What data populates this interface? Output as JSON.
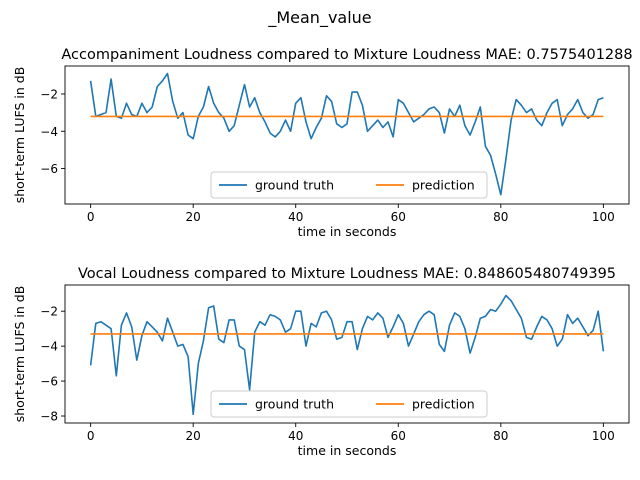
{
  "suptitle": "_Mean_value",
  "chart_data": [
    {
      "type": "line",
      "title": "Accompaniment Loudness compared to Mixture Loudness  MAE: 0.7575401288",
      "xlabel": "time in seconds",
      "ylabel": "short-term LUFS in dB",
      "xlim": [
        -5,
        105
      ],
      "ylim": [
        -7.9,
        -0.5
      ],
      "xticks": [
        0,
        20,
        40,
        60,
        80,
        100
      ],
      "yticks": [
        -6,
        -4,
        -2
      ],
      "xtick_labels": [
        "0",
        "20",
        "40",
        "60",
        "80",
        "100"
      ],
      "ytick_labels": [
        "−6",
        "−4",
        "−2"
      ],
      "legend": {
        "placement": "lower-center",
        "ncol": 2
      },
      "grid": false,
      "series": [
        {
          "name": "ground truth",
          "color": "#1f77b4",
          "x": [
            0,
            1,
            2,
            3,
            4,
            5,
            6,
            7,
            8,
            9,
            10,
            11,
            12,
            13,
            14,
            15,
            16,
            17,
            18,
            19,
            20,
            21,
            22,
            23,
            24,
            25,
            26,
            27,
            28,
            29,
            30,
            31,
            32,
            33,
            34,
            35,
            36,
            37,
            38,
            39,
            40,
            41,
            42,
            43,
            44,
            45,
            46,
            47,
            48,
            49,
            50,
            51,
            52,
            53,
            54,
            55,
            56,
            57,
            58,
            59,
            60,
            61,
            62,
            63,
            64,
            65,
            66,
            67,
            68,
            69,
            70,
            71,
            72,
            73,
            74,
            75,
            76,
            77,
            78,
            79,
            80,
            81,
            82,
            83,
            84,
            85,
            86,
            87,
            88,
            89,
            90,
            91,
            92,
            93,
            94,
            95,
            96,
            97,
            98,
            99,
            100
          ],
          "y": [
            -1.3,
            -3.2,
            -3.1,
            -3.0,
            -1.2,
            -3.2,
            -3.3,
            -2.5,
            -3.1,
            -3.2,
            -2.5,
            -3.0,
            -2.7,
            -1.6,
            -1.3,
            -0.9,
            -2.4,
            -3.3,
            -3.0,
            -4.2,
            -4.4,
            -3.2,
            -2.7,
            -1.6,
            -2.5,
            -3.0,
            -3.3,
            -4.0,
            -3.7,
            -2.6,
            -1.5,
            -2.7,
            -2.2,
            -3.0,
            -3.5,
            -4.1,
            -4.3,
            -4.0,
            -3.4,
            -4.0,
            -2.5,
            -2.2,
            -3.5,
            -4.4,
            -3.8,
            -3.3,
            -2.1,
            -2.4,
            -3.6,
            -3.8,
            -3.6,
            -1.9,
            -1.9,
            -2.6,
            -4.0,
            -3.7,
            -3.4,
            -3.8,
            -3.5,
            -4.3,
            -2.3,
            -2.5,
            -3.0,
            -3.5,
            -3.3,
            -3.1,
            -2.8,
            -2.7,
            -3.0,
            -4.1,
            -2.8,
            -3.2,
            -2.6,
            -3.7,
            -4.2,
            -3.5,
            -2.7,
            -4.8,
            -5.3,
            -6.3,
            -7.4,
            -5.5,
            -3.4,
            -2.3,
            -2.6,
            -3.0,
            -2.8,
            -3.4,
            -3.7,
            -3.0,
            -2.5,
            -2.3,
            -3.7,
            -3.1,
            -2.8,
            -2.3,
            -3.0,
            -3.3,
            -3.1,
            -2.3,
            -2.2
          ]
        },
        {
          "name": "prediction",
          "color": "#ff7f0e",
          "x": [
            0,
            100
          ],
          "y": [
            -3.2,
            -3.2
          ]
        }
      ]
    },
    {
      "type": "line",
      "title": "Vocal Loudness compared to Mixture Loudness MAE: 0.848605480749395",
      "xlabel": "time in seconds",
      "ylabel": "short-term LUFS in dB",
      "xlim": [
        -5,
        105
      ],
      "ylim": [
        -8.4,
        -0.5
      ],
      "xticks": [
        0,
        20,
        40,
        60,
        80,
        100
      ],
      "yticks": [
        -8,
        -6,
        -4,
        -2
      ],
      "xtick_labels": [
        "0",
        "20",
        "40",
        "60",
        "80",
        "100"
      ],
      "ytick_labels": [
        "−8",
        "−6",
        "−4",
        "−2"
      ],
      "legend": {
        "placement": "lower-center",
        "ncol": 2
      },
      "grid": false,
      "series": [
        {
          "name": "ground truth",
          "color": "#1f77b4",
          "x": [
            0,
            1,
            2,
            3,
            4,
            5,
            6,
            7,
            8,
            9,
            10,
            11,
            12,
            13,
            14,
            15,
            16,
            17,
            18,
            19,
            20,
            21,
            22,
            23,
            24,
            25,
            26,
            27,
            28,
            29,
            30,
            31,
            32,
            33,
            34,
            35,
            36,
            37,
            38,
            39,
            40,
            41,
            42,
            43,
            44,
            45,
            46,
            47,
            48,
            49,
            50,
            51,
            52,
            53,
            54,
            55,
            56,
            57,
            58,
            59,
            60,
            61,
            62,
            63,
            64,
            65,
            66,
            67,
            68,
            69,
            70,
            71,
            72,
            73,
            74,
            75,
            76,
            77,
            78,
            79,
            80,
            81,
            82,
            83,
            84,
            85,
            86,
            87,
            88,
            89,
            90,
            91,
            92,
            93,
            94,
            95,
            96,
            97,
            98,
            99,
            100
          ],
          "y": [
            -5.1,
            -2.7,
            -2.6,
            -2.8,
            -3.0,
            -5.7,
            -2.8,
            -2.1,
            -2.9,
            -4.8,
            -3.4,
            -2.6,
            -2.9,
            -3.2,
            -3.7,
            -2.4,
            -3.2,
            -4.0,
            -3.9,
            -4.6,
            -7.9,
            -5.0,
            -3.7,
            -1.8,
            -1.7,
            -3.6,
            -3.8,
            -2.5,
            -2.5,
            -4.0,
            -4.2,
            -6.5,
            -3.2,
            -2.6,
            -2.8,
            -2.2,
            -2.3,
            -2.5,
            -3.2,
            -3.0,
            -2.0,
            -2.0,
            -4.0,
            -2.7,
            -2.9,
            -2.1,
            -2.0,
            -2.5,
            -3.6,
            -3.5,
            -2.6,
            -2.6,
            -4.2,
            -3.0,
            -2.3,
            -2.5,
            -2.1,
            -2.4,
            -3.5,
            -2.9,
            -2.2,
            -2.7,
            -4.0,
            -3.3,
            -2.6,
            -2.2,
            -2.0,
            -2.2,
            -3.9,
            -4.3,
            -2.8,
            -2.1,
            -2.3,
            -3.0,
            -4.4,
            -3.5,
            -2.4,
            -2.3,
            -1.9,
            -2.0,
            -1.6,
            -1.1,
            -1.4,
            -1.9,
            -2.4,
            -3.5,
            -3.6,
            -2.9,
            -2.3,
            -2.5,
            -3.0,
            -4.0,
            -3.6,
            -2.2,
            -2.7,
            -2.4,
            -2.9,
            -3.4,
            -3.1,
            -2.0,
            -4.3
          ]
        },
        {
          "name": "prediction",
          "color": "#ff7f0e",
          "x": [
            0,
            100
          ],
          "y": [
            -3.3,
            -3.3
          ]
        }
      ]
    }
  ]
}
